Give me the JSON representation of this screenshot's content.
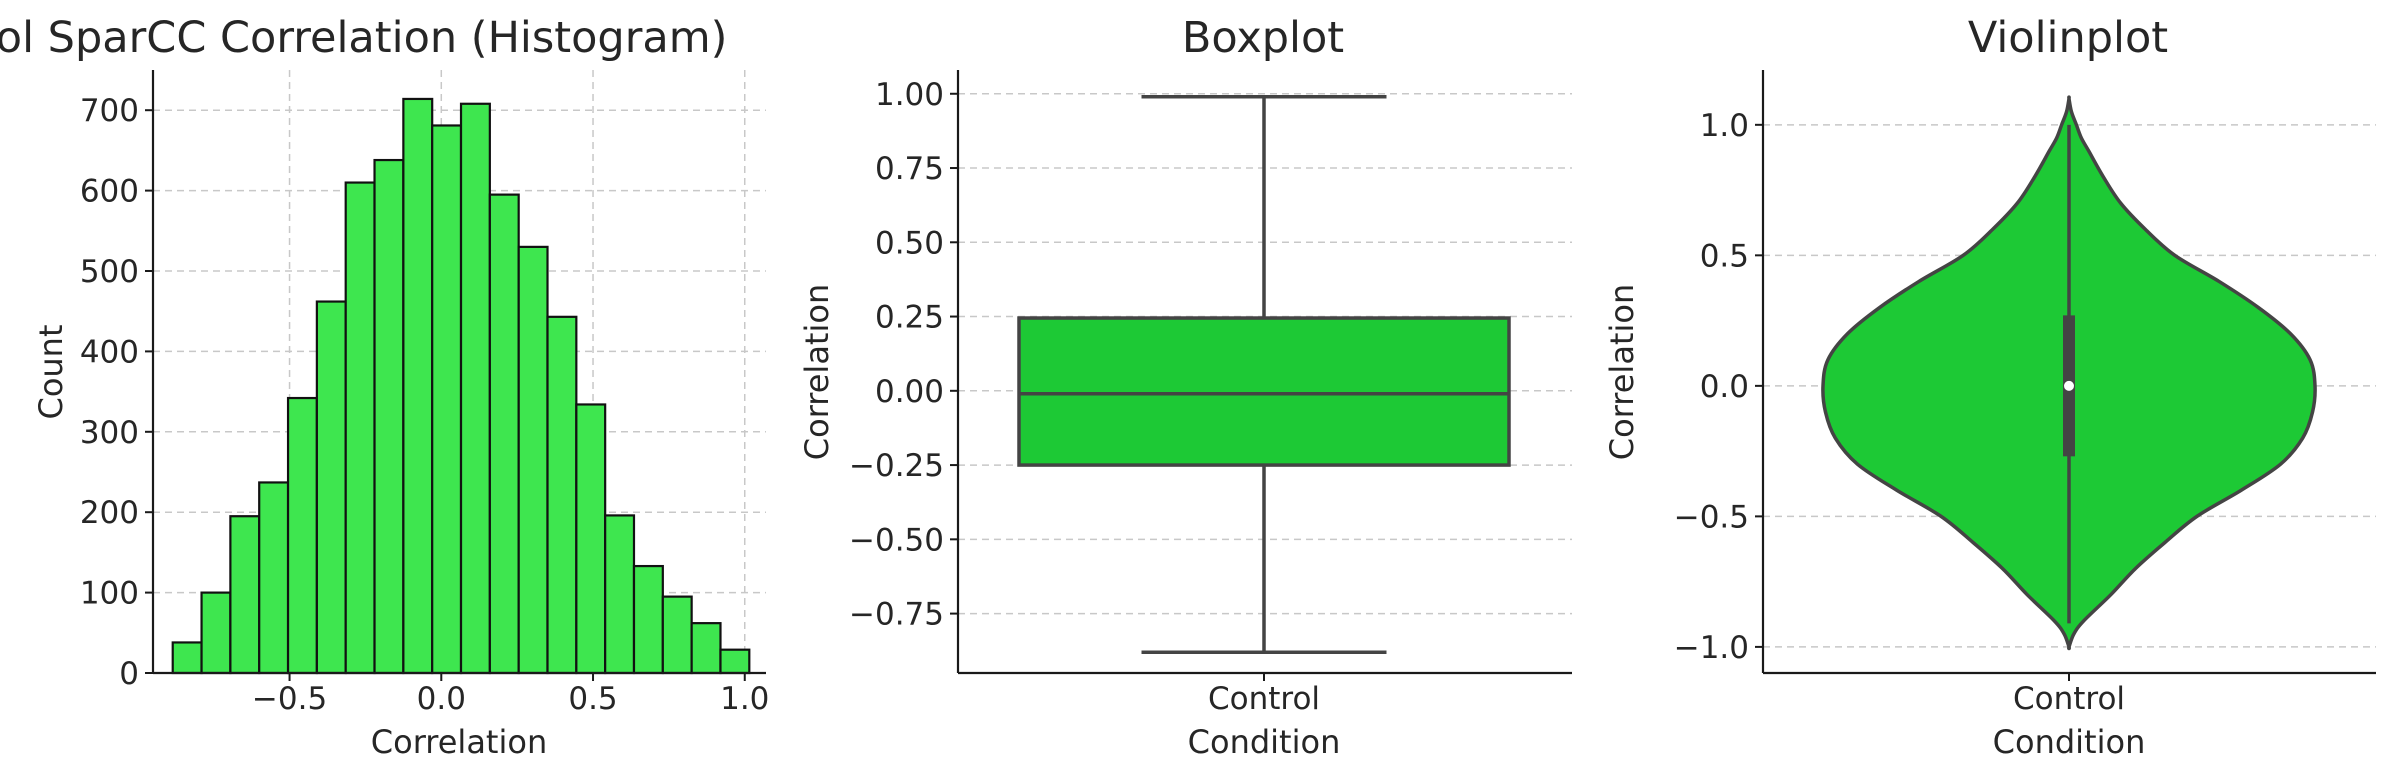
{
  "chart_data": [
    {
      "type": "bar",
      "title": "Control SparCC Correlation (Histogram)",
      "xlabel": "Correlation",
      "ylabel": "Count",
      "xlim": [
        -0.95,
        1.07
      ],
      "ylim": [
        0,
        750
      ],
      "xticks": [
        -0.5,
        0.0,
        0.5,
        1.0
      ],
      "xtick_labels": [
        "−0.5",
        "0.0",
        "0.5",
        "1.0"
      ],
      "yticks": [
        0,
        100,
        200,
        300,
        400,
        500,
        600,
        700
      ],
      "yticklabels": [
        "0",
        "100",
        "200",
        "300",
        "400",
        "500",
        "600",
        "700"
      ],
      "grid": true,
      "bar_color": "#3ee64f",
      "edge_color": "#111111",
      "bins": [
        -0.885,
        -0.79,
        -0.695,
        -0.6,
        -0.505,
        -0.41,
        -0.315,
        -0.22,
        -0.125,
        -0.03,
        0.065,
        0.16,
        0.255,
        0.35,
        0.445,
        0.54,
        0.635,
        0.73,
        0.825,
        0.92,
        1.015
      ],
      "counts": [
        38,
        100,
        195,
        237,
        342,
        462,
        610,
        638,
        714,
        681,
        708,
        595,
        530,
        443,
        334,
        196,
        133,
        95,
        62,
        29
      ]
    },
    {
      "type": "box",
      "title": "Boxplot",
      "xlabel": "Condition",
      "ylabel": "Correlation",
      "categories": [
        "Control"
      ],
      "ylim": [
        -0.95,
        1.08
      ],
      "yticks": [
        -0.75,
        -0.5,
        -0.25,
        0.0,
        0.25,
        0.5,
        0.75,
        1.0
      ],
      "yticklabels": [
        "−0.75",
        "−0.50",
        "−0.25",
        "0.00",
        "0.25",
        "0.50",
        "0.75",
        "1.00"
      ],
      "grid": true,
      "box_color": "#1dc935",
      "line_color": "#444444",
      "stats": {
        "whislo": -0.88,
        "q1": -0.25,
        "median": -0.01,
        "q3": 0.245,
        "whishi": 0.99
      }
    },
    {
      "type": "violin",
      "title": "Violinplot",
      "xlabel": "Condition",
      "ylabel": "Correlation",
      "categories": [
        "Control"
      ],
      "ylim": [
        -1.1,
        1.21
      ],
      "yticks": [
        -1.0,
        -0.5,
        0.0,
        0.5,
        1.0
      ],
      "yticklabels": [
        "−1.0",
        "−0.5",
        "0.0",
        "0.5",
        "1.0"
      ],
      "grid": true,
      "violin_color": "#1dc935",
      "line_color": "#444444",
      "density_y": [
        -1.0,
        -0.95,
        -0.9,
        -0.8,
        -0.7,
        -0.6,
        -0.5,
        -0.4,
        -0.3,
        -0.2,
        -0.1,
        0.0,
        0.1,
        0.2,
        0.3,
        0.4,
        0.5,
        0.6,
        0.7,
        0.8,
        0.9,
        0.95,
        1.0,
        1.05,
        1.1
      ],
      "density_w": [
        0.0,
        0.02,
        0.06,
        0.17,
        0.27,
        0.39,
        0.52,
        0.7,
        0.86,
        0.95,
        0.99,
        1.0,
        0.98,
        0.9,
        0.77,
        0.61,
        0.43,
        0.31,
        0.21,
        0.14,
        0.08,
        0.05,
        0.03,
        0.01,
        0.0
      ],
      "quartiles": {
        "q1": -0.27,
        "median": 0.0,
        "q3": 0.27,
        "min": -0.91,
        "max": 1.0
      }
    }
  ]
}
